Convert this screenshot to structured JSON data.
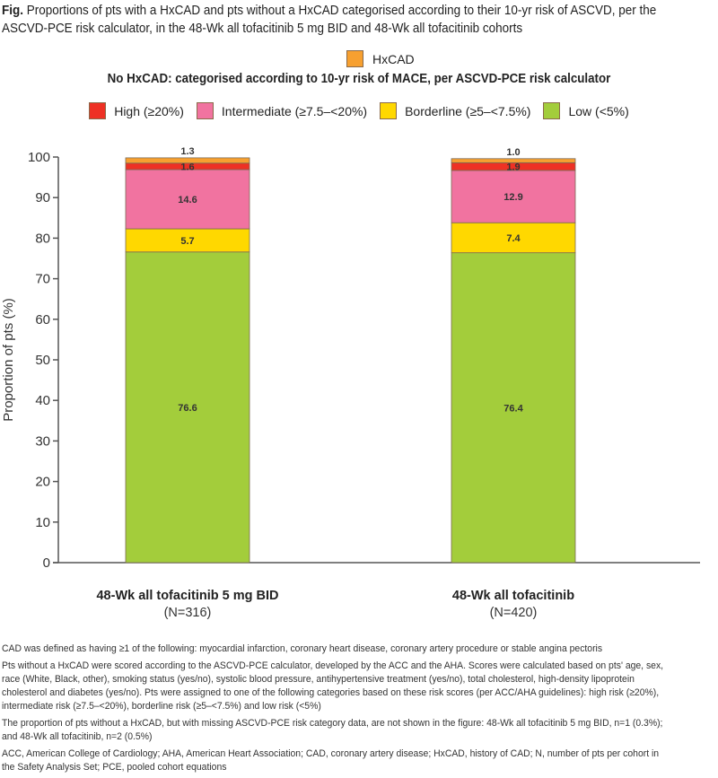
{
  "figure": {
    "title_prefix": "Fig.",
    "title_text": " Proportions of pts with a HxCAD and pts without a HxCAD categorised according to their 10-yr risk of ASCVD, per the ASCVD-PCE risk calculator, in the 48-Wk all tofacitinib 5 mg BID and 48-Wk all tofacitinib cohorts"
  },
  "legend": {
    "hxcad": {
      "label": "HxCAD",
      "color": "#f7a030"
    },
    "subtitle": "No HxCAD: categorised according to 10-yr risk of MACE, per ASCVD-PCE risk calculator",
    "items": [
      {
        "label": "High (≥20%)",
        "color": "#ee3124"
      },
      {
        "label": "Intermediate (≥7.5–<20%)",
        "color": "#f173a0"
      },
      {
        "label": "Borderline (≥5–<7.5%)",
        "color": "#ffd800"
      },
      {
        "label": "Low (<5%)",
        "color": "#a3cd3b"
      }
    ]
  },
  "chart_data": {
    "type": "bar",
    "stacked": true,
    "title": "",
    "xlabel": "",
    "ylabel": "Proportion of pts (%)",
    "ylim": [
      0,
      100
    ],
    "yticks": [
      0,
      10,
      20,
      30,
      40,
      50,
      60,
      70,
      80,
      90,
      100
    ],
    "categories": [
      {
        "name": "48-Wk all tofacitinib 5 mg BID",
        "n": "(N=316)"
      },
      {
        "name": "48-Wk all tofacitinib",
        "n": "(N=420)"
      }
    ],
    "series": [
      {
        "name": "Low (<5%)",
        "color": "#a3cd3b",
        "values": [
          76.6,
          76.4
        ],
        "labels": [
          "76.6",
          "76.4"
        ]
      },
      {
        "name": "Borderline (≥5–<7.5%)",
        "color": "#ffd800",
        "values": [
          5.7,
          7.4
        ],
        "labels": [
          "5.7",
          "7.4"
        ]
      },
      {
        "name": "Intermediate (≥7.5–<20%)",
        "color": "#f173a0",
        "values": [
          14.6,
          12.9
        ],
        "labels": [
          "14.6",
          "12.9"
        ]
      },
      {
        "name": "High (≥20%)",
        "color": "#ee3124",
        "values": [
          1.6,
          1.9
        ],
        "labels": [
          "1.6",
          "1.9"
        ]
      },
      {
        "name": "HxCAD",
        "color": "#f7a030",
        "values": [
          1.3,
          1.0
        ],
        "labels": [
          "1.3",
          "1.0"
        ]
      }
    ],
    "grid": false,
    "legend_position": "top"
  },
  "footnotes": [
    "CAD was defined as having ≥1 of the following: myocardial infarction, coronary heart disease, coronary artery procedure or stable angina pectoris",
    "Pts without a HxCAD were scored according to the ASCVD-PCE calculator, developed by the ACC and the AHA. Scores were calculated based on pts' age, sex, race (White, Black, other), smoking status (yes/no), systolic blood pressure, antihypertensive treatment (yes/no), total cholesterol, high-density lipoprotein cholesterol and diabetes (yes/no). Pts were assigned to one of the following categories based on these risk scores (per ACC/AHA guidelines): high risk (≥20%), intermediate risk (≥7.5–<20%), borderline risk (≥5–<7.5%) and low risk (<5%)",
    "The proportion of pts without a HxCAD, but with missing ASCVD-PCE risk category data, are not shown in the figure: 48-Wk all tofacitinib 5 mg BID, n=1 (0.3%); and 48-Wk all tofacitinib, n=2 (0.5%)",
    "ACC, American College of Cardiology; AHA, American Heart Association; CAD, coronary artery disease; HxCAD, history of CAD; N, number of pts per cohort in the Safety Analysis Set; PCE, pooled cohort equations"
  ]
}
